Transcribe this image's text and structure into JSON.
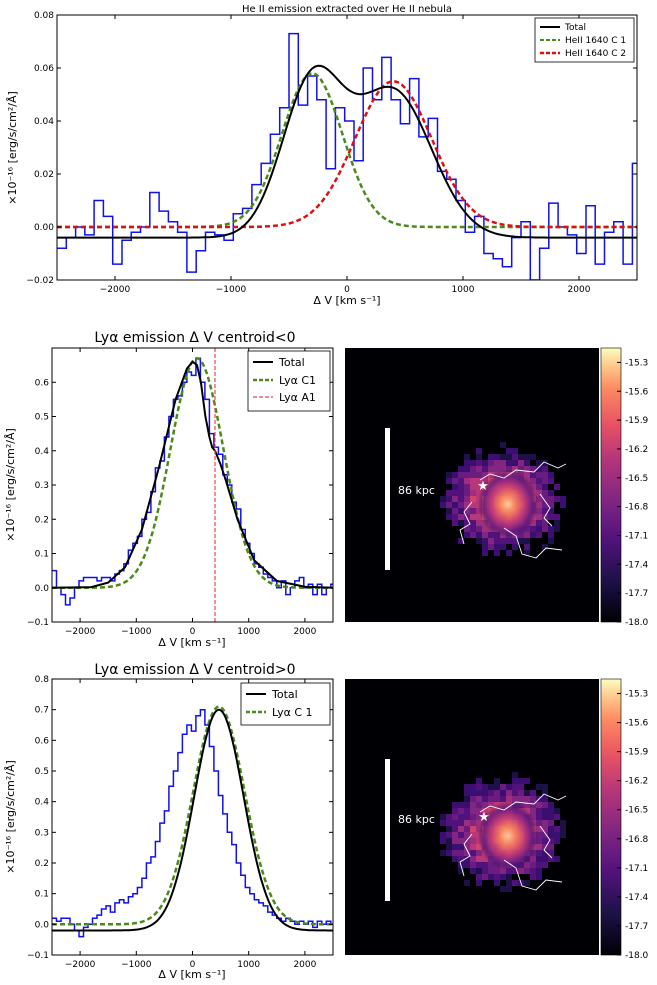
{
  "chart_data": [
    {
      "type": "line",
      "title": "He II emission extracted over He II nebula",
      "xlabel": "Δ V [km s⁻¹]",
      "ylabel": "×10⁻¹⁶ [erg/s/cm²/Å]",
      "xlim": [
        -2500,
        2500
      ],
      "ylim": [
        -0.02,
        0.08
      ],
      "xticks": [
        "−2000",
        "−1000",
        "0",
        "1000",
        "2000"
      ],
      "yticks": [
        "−0.02",
        "0.00",
        "0.02",
        "0.04",
        "0.06",
        "0.08"
      ],
      "legend_position": "top-right",
      "series": [
        {
          "name": "Total",
          "color": "#000000",
          "style": "solid",
          "model": "sum",
          "baseline": -0.004
        },
        {
          "name": "HeII 1640 C 1",
          "color": "#4a8a1a",
          "style": "dashed",
          "model": "gauss",
          "amp": 0.058,
          "center": -300,
          "sigma": 260,
          "baseline": 0
        },
        {
          "name": "HeII 1640 C 2",
          "color": "#dd1111",
          "style": "dashed",
          "model": "gauss",
          "amp": 0.055,
          "center": 400,
          "sigma": 330,
          "baseline": 0
        }
      ],
      "data_histogram": {
        "color": "#1010ee",
        "x": [
          -2500,
          -2420,
          -2340,
          -2260,
          -2180,
          -2100,
          -2020,
          -1940,
          -1860,
          -1780,
          -1700,
          -1620,
          -1540,
          -1460,
          -1380,
          -1300,
          -1220,
          -1140,
          -1060,
          -980,
          -900,
          -820,
          -740,
          -660,
          -580,
          -500,
          -420,
          -340,
          -260,
          -180,
          -100,
          -20,
          60,
          140,
          220,
          300,
          380,
          460,
          540,
          620,
          700,
          780,
          860,
          940,
          1020,
          1100,
          1180,
          1260,
          1340,
          1420,
          1500,
          1580,
          1660,
          1740,
          1820,
          1900,
          1980,
          2060,
          2140,
          2220,
          2300,
          2380,
          2460
        ],
        "y": [
          -0.008,
          -0.004,
          0.0,
          -0.003,
          0.01,
          0.004,
          -0.014,
          -0.005,
          -0.002,
          0.0,
          0.013,
          0.006,
          0.002,
          -0.002,
          -0.017,
          -0.009,
          -0.002,
          -0.003,
          -0.005,
          0.005,
          0.007,
          0.016,
          0.024,
          0.035,
          0.045,
          0.073,
          0.046,
          0.057,
          0.048,
          0.022,
          0.045,
          0.04,
          0.025,
          0.06,
          0.048,
          0.064,
          0.048,
          0.039,
          0.056,
          0.034,
          0.041,
          0.021,
          0.018,
          0.01,
          -0.002,
          0.004,
          -0.01,
          -0.012,
          -0.015,
          -0.004,
          0.002,
          -0.02,
          -0.008,
          0.009,
          0.0,
          -0.003,
          -0.01,
          0.008,
          -0.014,
          -0.002,
          0.002,
          -0.014,
          0.024
        ]
      }
    },
    {
      "type": "line",
      "title": "Lyα emission Δ V centroid<0",
      "xlabel": "Δ V [km s⁻¹]",
      "ylabel": "×10⁻¹⁶ [erg/s/cm²/Å]",
      "xlim": [
        -2500,
        2500
      ],
      "ylim": [
        -0.1,
        0.7
      ],
      "xticks": [
        "−2000",
        "−1000",
        "0",
        "1000",
        "2000"
      ],
      "yticks": [
        "−0.1",
        "0.0",
        "0.1",
        "0.2",
        "0.3",
        "0.4",
        "0.5",
        "0.6"
      ],
      "legend_position": "top-right",
      "vline": {
        "x": 400,
        "name": "Lyα A1",
        "color": "#ee4444"
      },
      "series": [
        {
          "name": "Total",
          "color": "#000000",
          "style": "solid"
        },
        {
          "name": "Lyα C1",
          "color": "#4a8a1a",
          "style": "dashed",
          "model": "gauss",
          "amp": 0.67,
          "center": 80,
          "sigma": 470,
          "baseline": 0
        }
      ],
      "total_points": {
        "x": [
          -2500,
          -1800,
          -1500,
          -1200,
          -900,
          -600,
          -300,
          -100,
          0,
          80,
          150,
          230,
          300,
          350,
          400,
          450,
          500,
          600,
          800,
          1100,
          1500,
          2000,
          2500
        ],
        "y": [
          0,
          0.002,
          0.015,
          0.06,
          0.17,
          0.35,
          0.55,
          0.64,
          0.66,
          0.65,
          0.6,
          0.5,
          0.44,
          0.41,
          0.4,
          0.38,
          0.36,
          0.31,
          0.2,
          0.08,
          0.02,
          0.003,
          0
        ]
      },
      "data_histogram": {
        "color": "#1010ee",
        "x": [
          -2500,
          -2420,
          -2340,
          -2260,
          -2180,
          -2100,
          -2020,
          -1940,
          -1860,
          -1780,
          -1700,
          -1620,
          -1540,
          -1460,
          -1380,
          -1300,
          -1220,
          -1140,
          -1060,
          -980,
          -900,
          -820,
          -740,
          -660,
          -580,
          -500,
          -420,
          -340,
          -260,
          -180,
          -100,
          -20,
          60,
          140,
          220,
          300,
          380,
          460,
          540,
          620,
          700,
          780,
          860,
          940,
          1020,
          1100,
          1180,
          1260,
          1340,
          1420,
          1500,
          1580,
          1660,
          1740,
          1820,
          1900,
          1980,
          2060,
          2140,
          2220,
          2300,
          2380,
          2460
        ],
        "y": [
          0.05,
          0.0,
          -0.02,
          -0.05,
          -0.03,
          0.0,
          0.02,
          0.03,
          0.03,
          0.03,
          0.02,
          0.03,
          0.03,
          0.02,
          0.04,
          0.05,
          0.07,
          0.11,
          0.13,
          0.15,
          0.2,
          0.22,
          0.28,
          0.35,
          0.37,
          0.44,
          0.5,
          0.55,
          0.56,
          0.6,
          0.63,
          0.62,
          0.67,
          0.6,
          0.55,
          0.45,
          0.41,
          0.39,
          0.33,
          0.3,
          0.25,
          0.23,
          0.17,
          0.13,
          0.1,
          0.07,
          0.06,
          0.04,
          0.03,
          0.02,
          0.0,
          0.02,
          -0.02,
          0.0,
          0.02,
          0.03,
          0.0,
          0.01,
          -0.02,
          0.01,
          -0.02,
          0.0,
          0.01
        ]
      }
    },
    {
      "type": "heatmap",
      "colorbar_ticks": [
        "-15.3",
        "-15.6",
        "-15.9",
        "-16.2",
        "-16.5",
        "-16.8",
        "-17.1",
        "-17.4",
        "-17.7",
        "-18.0"
      ],
      "scalebar_label": "86 kpc"
    },
    {
      "type": "line",
      "title": "Lyα emission Δ V centroid>0",
      "xlabel": "Δ V [km s⁻¹]",
      "ylabel": "×10⁻¹⁶ [erg/s/cm²/Å]",
      "xlim": [
        -2500,
        2500
      ],
      "ylim": [
        -0.1,
        0.8
      ],
      "xticks": [
        "−2000",
        "−1000",
        "0",
        "1000",
        "2000"
      ],
      "yticks": [
        "−0.1",
        "0.0",
        "0.1",
        "0.2",
        "0.3",
        "0.4",
        "0.5",
        "0.6",
        "0.7",
        "0.8"
      ],
      "legend_position": "top-right",
      "series": [
        {
          "name": "Total",
          "color": "#000000",
          "style": "solid",
          "model": "gauss",
          "amp": 0.72,
          "center": 470,
          "sigma": 440,
          "baseline": -0.02
        },
        {
          "name": "Lyα C 1",
          "color": "#4a8a1a",
          "style": "dashed",
          "model": "gauss",
          "amp": 0.71,
          "center": 470,
          "sigma": 460,
          "baseline": 0
        }
      ],
      "data_histogram": {
        "color": "#1010ee",
        "x": [
          -2500,
          -2420,
          -2340,
          -2260,
          -2180,
          -2100,
          -2020,
          -1940,
          -1860,
          -1780,
          -1700,
          -1620,
          -1540,
          -1460,
          -1380,
          -1300,
          -1220,
          -1140,
          -1060,
          -980,
          -900,
          -820,
          -740,
          -660,
          -580,
          -500,
          -420,
          -340,
          -260,
          -180,
          -100,
          -20,
          60,
          140,
          220,
          300,
          380,
          460,
          540,
          620,
          700,
          780,
          860,
          940,
          1020,
          1100,
          1180,
          1260,
          1340,
          1420,
          1500,
          1580,
          1660,
          1740,
          1820,
          1900,
          1980,
          2060,
          2140,
          2220,
          2300,
          2380,
          2460
        ],
        "y": [
          0.02,
          0.01,
          0.02,
          0.02,
          0.0,
          -0.02,
          -0.04,
          -0.01,
          0.0,
          0.02,
          0.03,
          0.05,
          0.06,
          0.04,
          0.07,
          0.08,
          0.07,
          0.09,
          0.1,
          0.12,
          0.15,
          0.2,
          0.22,
          0.27,
          0.33,
          0.37,
          0.45,
          0.5,
          0.56,
          0.62,
          0.65,
          0.63,
          0.68,
          0.7,
          0.65,
          0.58,
          0.5,
          0.42,
          0.36,
          0.3,
          0.26,
          0.2,
          0.16,
          0.12,
          0.1,
          0.08,
          0.07,
          0.06,
          0.04,
          0.03,
          0.02,
          0.01,
          0.02,
          0.01,
          0.0,
          0.01,
          0.0,
          0.01,
          -0.01,
          0.01,
          0.0,
          0.01,
          0.0
        ]
      }
    },
    {
      "type": "heatmap",
      "colorbar_ticks": [
        "-15.3",
        "-15.6",
        "-15.9",
        "-16.2",
        "-16.5",
        "-16.8",
        "-17.1",
        "-17.4",
        "-17.7",
        "-18.0"
      ],
      "scalebar_label": "86 kpc"
    }
  ]
}
